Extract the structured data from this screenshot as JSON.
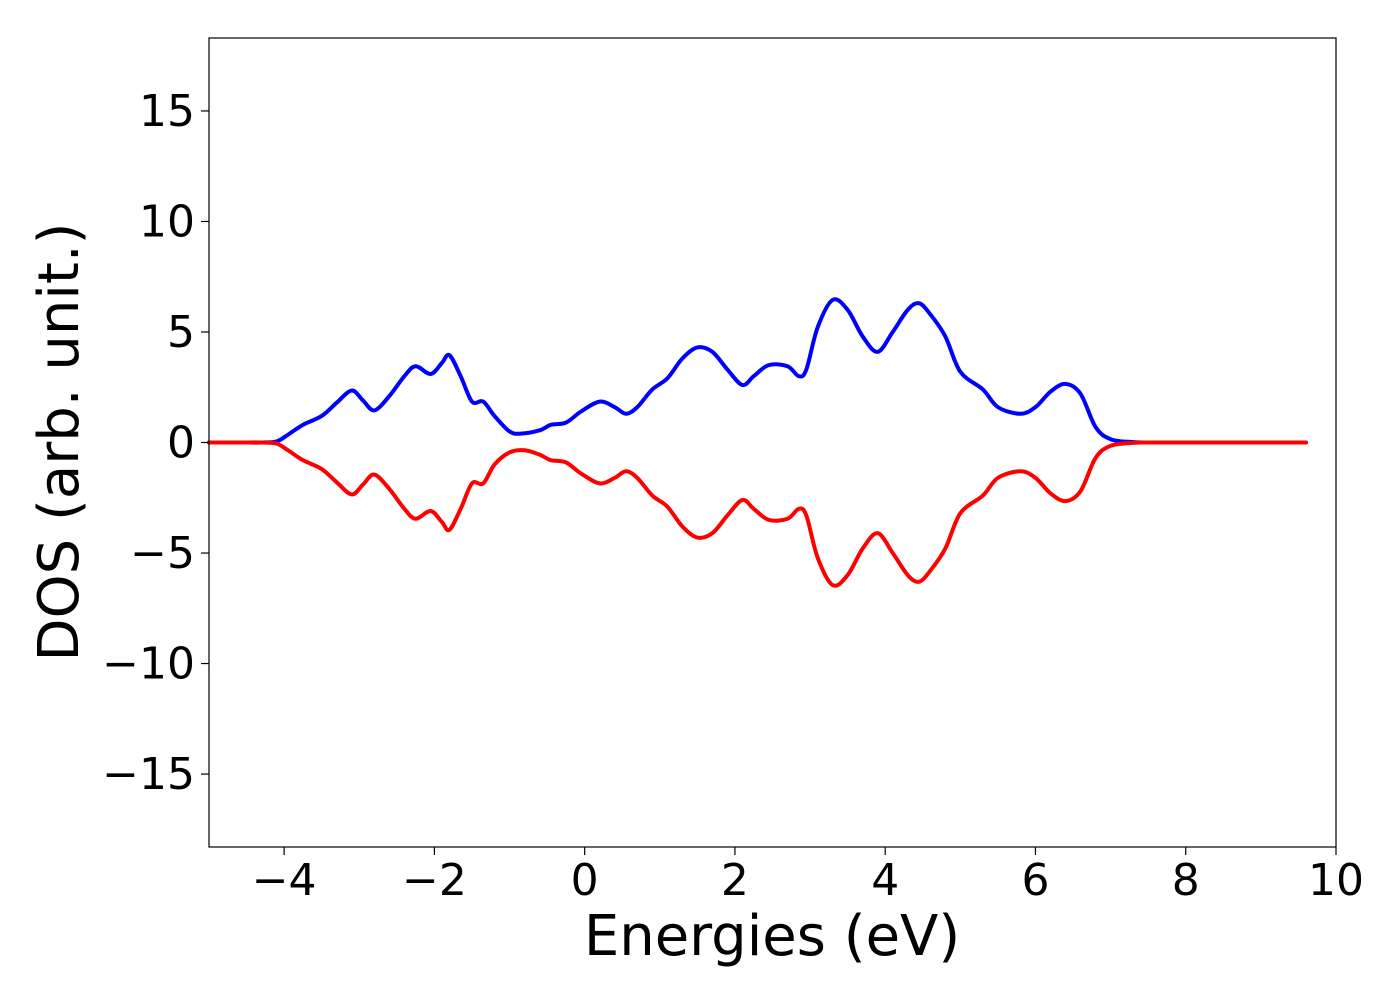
{
  "chart_data": {
    "type": "line",
    "title": "",
    "xlabel": "Energies (eV)",
    "ylabel": "DOS (arb. unit.)",
    "xlim": [
      -5,
      10
    ],
    "ylim": [
      -18.3,
      18.3
    ],
    "grid": false,
    "legend": "none",
    "x_ticks": [
      {
        "value": -4,
        "label": "−4"
      },
      {
        "value": -2,
        "label": "−2"
      },
      {
        "value": 0,
        "label": "0"
      },
      {
        "value": 2,
        "label": "2"
      },
      {
        "value": 4,
        "label": "4"
      },
      {
        "value": 6,
        "label": "6"
      },
      {
        "value": 8,
        "label": "8"
      },
      {
        "value": 10,
        "label": "10"
      }
    ],
    "y_ticks": [
      {
        "value": 15,
        "label": "15"
      },
      {
        "value": 10,
        "label": "10"
      },
      {
        "value": 5,
        "label": "5"
      },
      {
        "value": 0,
        "label": "0"
      },
      {
        "value": -5,
        "label": "−5"
      },
      {
        "value": -10,
        "label": "−10"
      },
      {
        "value": -15,
        "label": "−15"
      }
    ],
    "series": [
      {
        "color": "#0000ff",
        "points": [
          [
            -5.0,
            0.0
          ],
          [
            -4.6,
            0.0
          ],
          [
            -4.3,
            0.0
          ],
          [
            -4.1,
            0.05
          ],
          [
            -3.95,
            0.35
          ],
          [
            -3.75,
            0.8
          ],
          [
            -3.5,
            1.2
          ],
          [
            -3.3,
            1.8
          ],
          [
            -3.1,
            2.35
          ],
          [
            -2.95,
            1.9
          ],
          [
            -2.8,
            1.45
          ],
          [
            -2.6,
            2.1
          ],
          [
            -2.4,
            3.0
          ],
          [
            -2.25,
            3.45
          ],
          [
            -2.05,
            3.1
          ],
          [
            -1.9,
            3.6
          ],
          [
            -1.8,
            3.95
          ],
          [
            -1.65,
            3.0
          ],
          [
            -1.5,
            1.85
          ],
          [
            -1.35,
            1.85
          ],
          [
            -1.2,
            1.2
          ],
          [
            -1.0,
            0.5
          ],
          [
            -0.85,
            0.4
          ],
          [
            -0.6,
            0.55
          ],
          [
            -0.45,
            0.8
          ],
          [
            -0.25,
            0.9
          ],
          [
            -0.05,
            1.4
          ],
          [
            0.2,
            1.85
          ],
          [
            0.4,
            1.6
          ],
          [
            0.55,
            1.3
          ],
          [
            0.7,
            1.6
          ],
          [
            0.9,
            2.4
          ],
          [
            1.1,
            2.9
          ],
          [
            1.3,
            3.8
          ],
          [
            1.5,
            4.3
          ],
          [
            1.7,
            4.1
          ],
          [
            1.9,
            3.3
          ],
          [
            2.1,
            2.6
          ],
          [
            2.25,
            3.0
          ],
          [
            2.45,
            3.5
          ],
          [
            2.7,
            3.45
          ],
          [
            2.85,
            3.0
          ],
          [
            2.95,
            3.3
          ],
          [
            3.1,
            5.2
          ],
          [
            3.3,
            6.45
          ],
          [
            3.5,
            6.0
          ],
          [
            3.7,
            4.8
          ],
          [
            3.9,
            4.1
          ],
          [
            4.1,
            5.0
          ],
          [
            4.3,
            6.0
          ],
          [
            4.45,
            6.3
          ],
          [
            4.6,
            5.8
          ],
          [
            4.8,
            4.8
          ],
          [
            5.0,
            3.2
          ],
          [
            5.3,
            2.4
          ],
          [
            5.5,
            1.6
          ],
          [
            5.8,
            1.3
          ],
          [
            6.0,
            1.6
          ],
          [
            6.2,
            2.3
          ],
          [
            6.4,
            2.65
          ],
          [
            6.6,
            2.2
          ],
          [
            6.8,
            0.7
          ],
          [
            7.0,
            0.15
          ],
          [
            7.3,
            0.02
          ],
          [
            7.6,
            0.0
          ],
          [
            8.5,
            0.0
          ],
          [
            9.6,
            0.0
          ]
        ]
      },
      {
        "color": "#ff0000",
        "points": [
          [
            -5.0,
            0.0
          ],
          [
            -4.6,
            0.0
          ],
          [
            -4.3,
            0.0
          ],
          [
            -4.1,
            -0.05
          ],
          [
            -3.95,
            -0.35
          ],
          [
            -3.75,
            -0.8
          ],
          [
            -3.5,
            -1.2
          ],
          [
            -3.3,
            -1.8
          ],
          [
            -3.1,
            -2.35
          ],
          [
            -2.95,
            -1.9
          ],
          [
            -2.8,
            -1.45
          ],
          [
            -2.6,
            -2.1
          ],
          [
            -2.4,
            -3.0
          ],
          [
            -2.25,
            -3.45
          ],
          [
            -2.05,
            -3.1
          ],
          [
            -1.9,
            -3.6
          ],
          [
            -1.8,
            -3.95
          ],
          [
            -1.65,
            -3.0
          ],
          [
            -1.5,
            -1.85
          ],
          [
            -1.35,
            -1.85
          ],
          [
            -1.2,
            -1.0
          ],
          [
            -1.0,
            -0.45
          ],
          [
            -0.8,
            -0.35
          ],
          [
            -0.6,
            -0.55
          ],
          [
            -0.45,
            -0.8
          ],
          [
            -0.25,
            -0.9
          ],
          [
            -0.05,
            -1.4
          ],
          [
            0.2,
            -1.85
          ],
          [
            0.4,
            -1.6
          ],
          [
            0.55,
            -1.3
          ],
          [
            0.7,
            -1.6
          ],
          [
            0.9,
            -2.4
          ],
          [
            1.1,
            -2.9
          ],
          [
            1.3,
            -3.8
          ],
          [
            1.5,
            -4.3
          ],
          [
            1.7,
            -4.1
          ],
          [
            1.9,
            -3.3
          ],
          [
            2.1,
            -2.6
          ],
          [
            2.25,
            -3.0
          ],
          [
            2.45,
            -3.5
          ],
          [
            2.7,
            -3.45
          ],
          [
            2.85,
            -3.0
          ],
          [
            2.95,
            -3.3
          ],
          [
            3.1,
            -5.2
          ],
          [
            3.3,
            -6.45
          ],
          [
            3.5,
            -6.0
          ],
          [
            3.7,
            -4.8
          ],
          [
            3.9,
            -4.1
          ],
          [
            4.1,
            -5.0
          ],
          [
            4.3,
            -6.0
          ],
          [
            4.45,
            -6.3
          ],
          [
            4.6,
            -5.8
          ],
          [
            4.8,
            -4.8
          ],
          [
            5.0,
            -3.2
          ],
          [
            5.3,
            -2.4
          ],
          [
            5.5,
            -1.6
          ],
          [
            5.8,
            -1.3
          ],
          [
            6.0,
            -1.6
          ],
          [
            6.2,
            -2.3
          ],
          [
            6.4,
            -2.65
          ],
          [
            6.6,
            -2.2
          ],
          [
            6.8,
            -0.7
          ],
          [
            7.0,
            -0.15
          ],
          [
            7.3,
            -0.02
          ],
          [
            7.6,
            0.0
          ],
          [
            8.5,
            0.0
          ],
          [
            9.6,
            0.0
          ]
        ]
      }
    ]
  }
}
